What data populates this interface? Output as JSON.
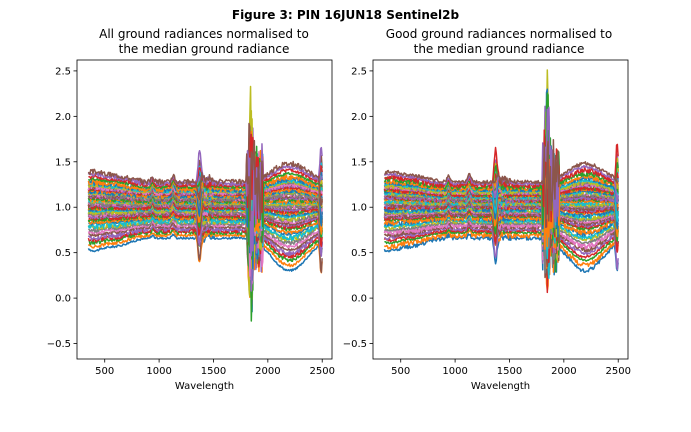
{
  "figure_title": "Figure 3: PIN 16JUN18  Sentinel2b",
  "chart_data": [
    {
      "type": "line",
      "title": "All ground radiances normalised to\nthe median ground radiance",
      "title_lines": [
        "All ground radiances normalised to",
        "the median ground radiance"
      ],
      "xlabel": "Wavelength",
      "ylabel": "",
      "xlim": [
        245,
        2590
      ],
      "ylim": [
        -0.67,
        2.62
      ],
      "xticks": [
        500,
        1000,
        1500,
        2000,
        2500
      ],
      "xtick_labels": [
        "500",
        "1000",
        "1500",
        "2000",
        "2500"
      ],
      "yticks": [
        -0.5,
        0.0,
        0.5,
        1.0,
        1.5,
        2.0,
        2.5
      ],
      "ytick_labels": [
        "−0.5",
        "0.0",
        "0.5",
        "1.0",
        "1.5",
        "2.0",
        "2.5"
      ],
      "wavelength_range": [
        350,
        2500
      ],
      "n_series": 56,
      "series_offsets": [
        -0.34,
        -0.31,
        -0.28,
        -0.26,
        -0.24,
        -0.22,
        -0.2,
        -0.18,
        -0.16,
        -0.15,
        -0.13,
        -0.12,
        -0.1,
        -0.09,
        -0.08,
        -0.07,
        -0.06,
        -0.05,
        -0.04,
        -0.03,
        -0.02,
        -0.01,
        0.0,
        0.0,
        0.01,
        0.02,
        0.03,
        0.03,
        0.04,
        0.05,
        0.06,
        0.06,
        0.07,
        0.08,
        0.08,
        0.09,
        0.1,
        0.1,
        0.11,
        0.12,
        0.12,
        0.13,
        0.14,
        0.14,
        0.15,
        0.16,
        0.16,
        0.17,
        0.17,
        0.18,
        0.19,
        0.2,
        0.22,
        0.24,
        0.26,
        0.28
      ]
    },
    {
      "type": "line",
      "title": "Good ground radiances normalised to\nthe median ground radiance",
      "title_lines": [
        "Good ground radiances normalised to",
        "the median ground radiance"
      ],
      "xlabel": "Wavelength",
      "ylabel": "",
      "xlim": [
        245,
        2590
      ],
      "ylim": [
        -0.67,
        2.62
      ],
      "xticks": [
        500,
        1000,
        1500,
        2000,
        2500
      ],
      "xtick_labels": [
        "500",
        "1000",
        "1500",
        "2000",
        "2500"
      ],
      "yticks": [
        -0.5,
        0.0,
        0.5,
        1.0,
        1.5,
        2.0,
        2.5
      ],
      "ytick_labels": [
        "−0.5",
        "0.0",
        "0.5",
        "1.0",
        "1.5",
        "2.0",
        "2.5"
      ],
      "wavelength_range": [
        350,
        2500
      ],
      "n_series": 56,
      "series_offsets": [
        -0.34,
        -0.31,
        -0.28,
        -0.26,
        -0.24,
        -0.22,
        -0.2,
        -0.18,
        -0.16,
        -0.15,
        -0.13,
        -0.12,
        -0.1,
        -0.09,
        -0.08,
        -0.07,
        -0.06,
        -0.05,
        -0.04,
        -0.03,
        -0.02,
        -0.01,
        0.0,
        0.0,
        0.01,
        0.02,
        0.03,
        0.03,
        0.04,
        0.05,
        0.06,
        0.06,
        0.07,
        0.08,
        0.08,
        0.09,
        0.1,
        0.1,
        0.11,
        0.12,
        0.12,
        0.13,
        0.14,
        0.14,
        0.15,
        0.16,
        0.16,
        0.17,
        0.17,
        0.18,
        0.19,
        0.2,
        0.22,
        0.24,
        0.26,
        0.28
      ]
    }
  ],
  "colors": [
    "#1f77b4",
    "#ff7f0e",
    "#2ca02c",
    "#d62728",
    "#9467bd",
    "#8c564b",
    "#e377c2",
    "#7f7f7f",
    "#bcbd22",
    "#17becf"
  ]
}
